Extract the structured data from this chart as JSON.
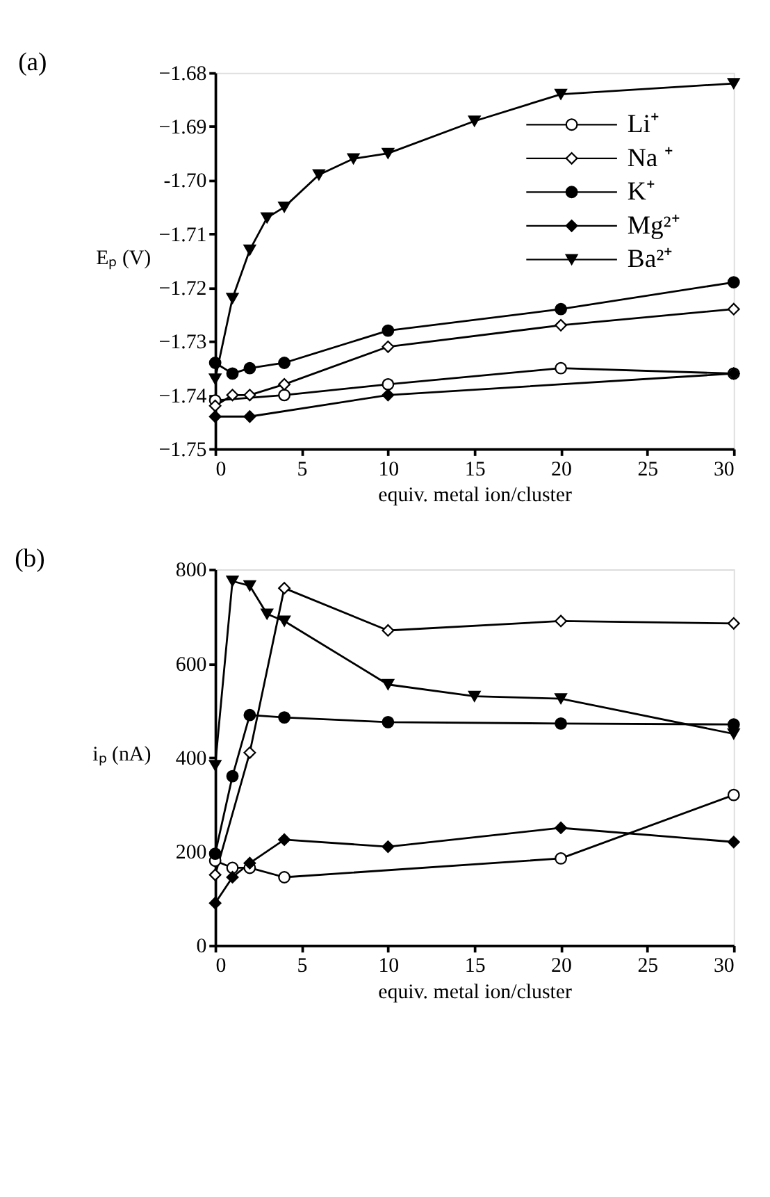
{
  "chart_data": [
    {
      "type": "line",
      "title": "(a)",
      "xlabel": "equiv. metal ion/cluster",
      "ylabel": "Eₚ (V)",
      "xlim": [
        0,
        30
      ],
      "xticks": [
        0,
        5,
        10,
        15,
        20,
        25,
        30
      ],
      "ylim": [
        -1.75,
        -1.68
      ],
      "yticks": [
        -1.75,
        -1.74,
        -1.73,
        -1.72,
        -1.71,
        {
          "value": -1.7,
          "label": "-1.70"
        },
        -1.69,
        -1.68
      ],
      "grid": false,
      "legend": "top right",
      "line_style": "solid",
      "series": [
        {
          "name": "Li⁺",
          "color": "#ffffff",
          "marker": "circle",
          "x": [
            0,
            4,
            10,
            20,
            30
          ],
          "values": [
            -1.741,
            -1.74,
            -1.738,
            -1.735,
            -1.736
          ]
        },
        {
          "name": "Na ⁺",
          "color": "#ffffff",
          "marker": "diamond",
          "x": [
            0,
            1,
            2,
            4,
            10,
            20,
            30
          ],
          "values": [
            -1.742,
            -1.74,
            -1.74,
            -1.738,
            -1.731,
            -1.727,
            -1.724
          ]
        },
        {
          "name": "K⁺",
          "color": "#000000",
          "marker": "circle",
          "x": [
            0,
            1,
            2,
            4,
            10,
            20,
            30
          ],
          "values": [
            -1.734,
            -1.736,
            -1.735,
            -1.734,
            -1.728,
            -1.724,
            -1.719
          ]
        },
        {
          "name": "Mg²⁺",
          "color": "#000000",
          "marker": "diamond",
          "x": [
            0,
            2,
            10,
            30
          ],
          "values": [
            -1.744,
            -1.744,
            -1.74,
            -1.736
          ]
        },
        {
          "name": "Ba²⁺",
          "color": "#000000",
          "marker": "triangle",
          "x": [
            0,
            1,
            2,
            3,
            4,
            6,
            8,
            10,
            15,
            20,
            30
          ],
          "values": [
            -1.737,
            -1.722,
            -1.713,
            -1.707,
            -1.705,
            -1.699,
            -1.696,
            -1.695,
            -1.689,
            -1.684,
            -1.682
          ]
        }
      ]
    },
    {
      "type": "line",
      "title": "(b)",
      "xlabel": "equiv. metal ion/cluster",
      "ylabel": "iₚ (nA)",
      "xlim": [
        0,
        30
      ],
      "xticks": [
        0,
        5,
        10,
        15,
        20,
        25,
        30
      ],
      "ylim": [
        0,
        800
      ],
      "yticks": [
        0,
        200,
        400,
        600,
        800
      ],
      "grid": false,
      "line_style": "solid",
      "series": [
        {
          "color": "#ffffff",
          "marker": "circle",
          "x": [
            0,
            1,
            2,
            4,
            20,
            30
          ],
          "values": [
            180,
            165,
            165,
            145,
            185,
            320
          ]
        },
        {
          "color": "#ffffff",
          "marker": "diamond",
          "x": [
            0,
            2,
            4,
            10,
            20,
            30
          ],
          "values": [
            150,
            410,
            760,
            670,
            690,
            685
          ]
        },
        {
          "color": "#000000",
          "marker": "circle",
          "x": [
            0,
            1,
            2,
            4,
            10,
            20,
            30
          ],
          "values": [
            195,
            360,
            490,
            485,
            475,
            472,
            470
          ]
        },
        {
          "color": "#000000",
          "marker": "diamond",
          "x": [
            0,
            1,
            2,
            4,
            10,
            20,
            30
          ],
          "values": [
            90,
            145,
            175,
            225,
            210,
            250,
            220
          ]
        },
        {
          "color": "#000000",
          "marker": "triangle",
          "x": [
            0,
            1,
            2,
            3,
            4,
            10,
            15,
            20,
            30
          ],
          "values": [
            383,
            775,
            765,
            705,
            690,
            555,
            530,
            525,
            450
          ]
        }
      ]
    }
  ]
}
